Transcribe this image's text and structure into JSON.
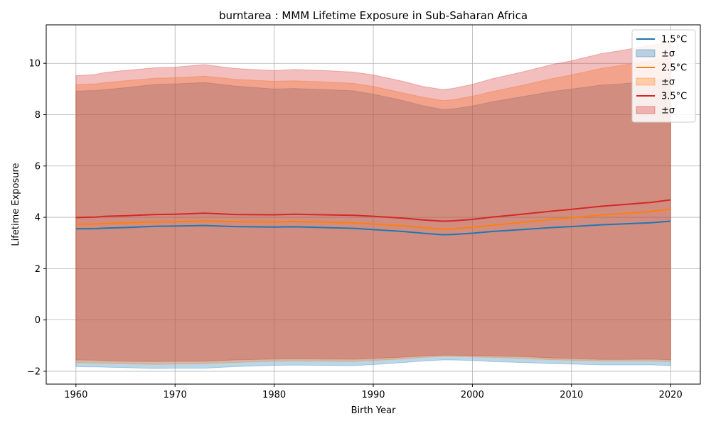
{
  "chart_data": {
    "type": "area",
    "title": "burntarea : MMM Lifetime Exposure in Sub-Saharan Africa",
    "xlabel": "Birth Year",
    "ylabel": "Lifetime Exposure",
    "xlim": [
      1957,
      2023
    ],
    "ylim": [
      -2.5,
      11.5
    ],
    "xticks": [
      1960,
      1970,
      1980,
      1990,
      2000,
      2010,
      2020
    ],
    "yticks": [
      -2,
      0,
      2,
      4,
      6,
      8,
      10
    ],
    "grid": true,
    "legend_position": "top-right",
    "x": [
      1960,
      1962,
      1963,
      1965,
      1968,
      1970,
      1973,
      1976,
      1980,
      1982,
      1985,
      1988,
      1990,
      1993,
      1995,
      1997,
      1998,
      2000,
      2002,
      2005,
      2008,
      2010,
      2013,
      2015,
      2018,
      2020
    ],
    "series": [
      {
        "name": "1.5°C",
        "band_name": "±σ",
        "color": "#1f77b4",
        "band_color": "#aec7e8",
        "mean": [
          3.55,
          3.56,
          3.58,
          3.6,
          3.65,
          3.66,
          3.68,
          3.64,
          3.62,
          3.63,
          3.6,
          3.57,
          3.52,
          3.45,
          3.38,
          3.32,
          3.33,
          3.38,
          3.45,
          3.52,
          3.6,
          3.64,
          3.71,
          3.74,
          3.79,
          3.85
        ],
        "lower": [
          -1.82,
          -1.83,
          -1.84,
          -1.86,
          -1.89,
          -1.88,
          -1.88,
          -1.82,
          -1.77,
          -1.76,
          -1.77,
          -1.78,
          -1.74,
          -1.66,
          -1.6,
          -1.56,
          -1.56,
          -1.58,
          -1.62,
          -1.66,
          -1.7,
          -1.72,
          -1.75,
          -1.75,
          -1.75,
          -1.78
        ],
        "upper": [
          8.92,
          8.94,
          8.98,
          9.05,
          9.18,
          9.2,
          9.25,
          9.12,
          9.0,
          9.02,
          8.98,
          8.93,
          8.8,
          8.55,
          8.35,
          8.2,
          8.22,
          8.34,
          8.5,
          8.7,
          8.9,
          9.0,
          9.15,
          9.2,
          9.3,
          9.45
        ]
      },
      {
        "name": "2.5°C",
        "band_name": "±σ",
        "color": "#ff7f0e",
        "band_color": "#ffbb78",
        "mean": [
          3.73,
          3.74,
          3.76,
          3.78,
          3.82,
          3.83,
          3.86,
          3.83,
          3.82,
          3.84,
          3.81,
          3.78,
          3.74,
          3.67,
          3.6,
          3.54,
          3.55,
          3.61,
          3.69,
          3.8,
          3.92,
          3.98,
          4.09,
          4.14,
          4.23,
          4.32
        ],
        "lower": [
          -1.67,
          -1.68,
          -1.69,
          -1.71,
          -1.73,
          -1.72,
          -1.71,
          -1.66,
          -1.61,
          -1.6,
          -1.61,
          -1.62,
          -1.58,
          -1.52,
          -1.46,
          -1.42,
          -1.42,
          -1.44,
          -1.46,
          -1.5,
          -1.55,
          -1.57,
          -1.6,
          -1.6,
          -1.6,
          -1.62
        ],
        "upper": [
          9.17,
          9.2,
          9.25,
          9.32,
          9.42,
          9.44,
          9.5,
          9.38,
          9.3,
          9.32,
          9.28,
          9.22,
          9.1,
          8.85,
          8.68,
          8.55,
          8.58,
          8.72,
          8.9,
          9.14,
          9.4,
          9.55,
          9.8,
          9.92,
          10.1,
          10.3
        ]
      },
      {
        "name": "3.5°C",
        "band_name": "±σ",
        "color": "#d62728",
        "band_color": "#ff9896",
        "mean": [
          3.99,
          4.01,
          4.04,
          4.06,
          4.11,
          4.12,
          4.16,
          4.11,
          4.1,
          4.12,
          4.1,
          4.08,
          4.04,
          3.97,
          3.9,
          3.85,
          3.86,
          3.92,
          4.01,
          4.12,
          4.24,
          4.31,
          4.43,
          4.49,
          4.58,
          4.68
        ],
        "lower": [
          -1.56,
          -1.57,
          -1.59,
          -1.61,
          -1.62,
          -1.61,
          -1.61,
          -1.56,
          -1.52,
          -1.51,
          -1.52,
          -1.53,
          -1.5,
          -1.45,
          -1.4,
          -1.37,
          -1.37,
          -1.39,
          -1.4,
          -1.43,
          -1.48,
          -1.5,
          -1.54,
          -1.54,
          -1.53,
          -1.55
        ],
        "upper": [
          9.52,
          9.57,
          9.65,
          9.72,
          9.83,
          9.85,
          9.95,
          9.8,
          9.72,
          9.76,
          9.72,
          9.66,
          9.55,
          9.3,
          9.1,
          8.98,
          9.02,
          9.18,
          9.4,
          9.66,
          9.95,
          10.1,
          10.38,
          10.5,
          10.7,
          10.85
        ]
      }
    ]
  }
}
